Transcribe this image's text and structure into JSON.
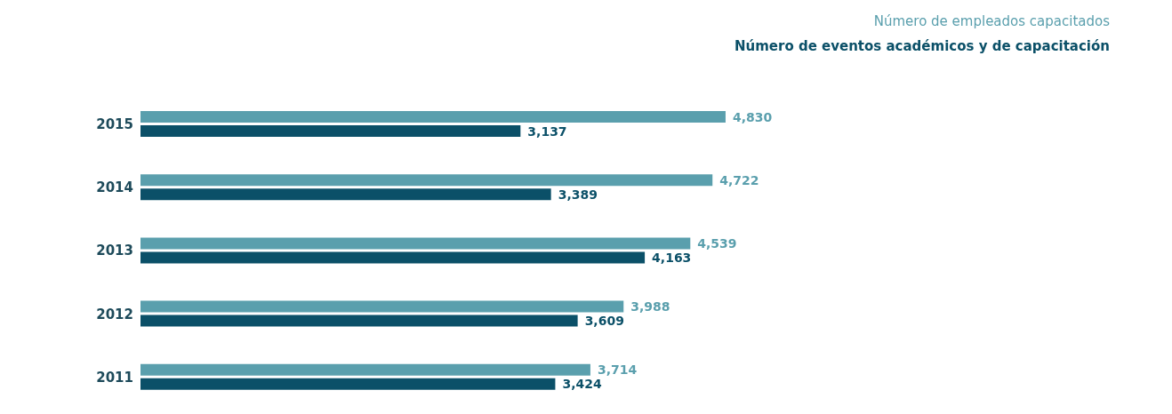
{
  "chart_data": {
    "type": "bar",
    "orientation": "horizontal",
    "categories": [
      "2015",
      "2014",
      "2013",
      "2012",
      "2011"
    ],
    "series": [
      {
        "name": "Número de empleados capacitados",
        "color": "#5a9fad",
        "values": [
          4830,
          4722,
          4539,
          3988,
          3714
        ],
        "value_labels": [
          "4,830",
          "4,722",
          "4,539",
          "3,988",
          "3,714"
        ]
      },
      {
        "name": "Número de eventos académicos y de capacitación",
        "color": "#0b5068",
        "values": [
          3137,
          3389,
          4163,
          3609,
          3424
        ],
        "value_labels": [
          "3,137",
          "3,389",
          "4,163",
          "3,609",
          "3,424"
        ]
      }
    ],
    "legend": "top right",
    "grid": false
  }
}
